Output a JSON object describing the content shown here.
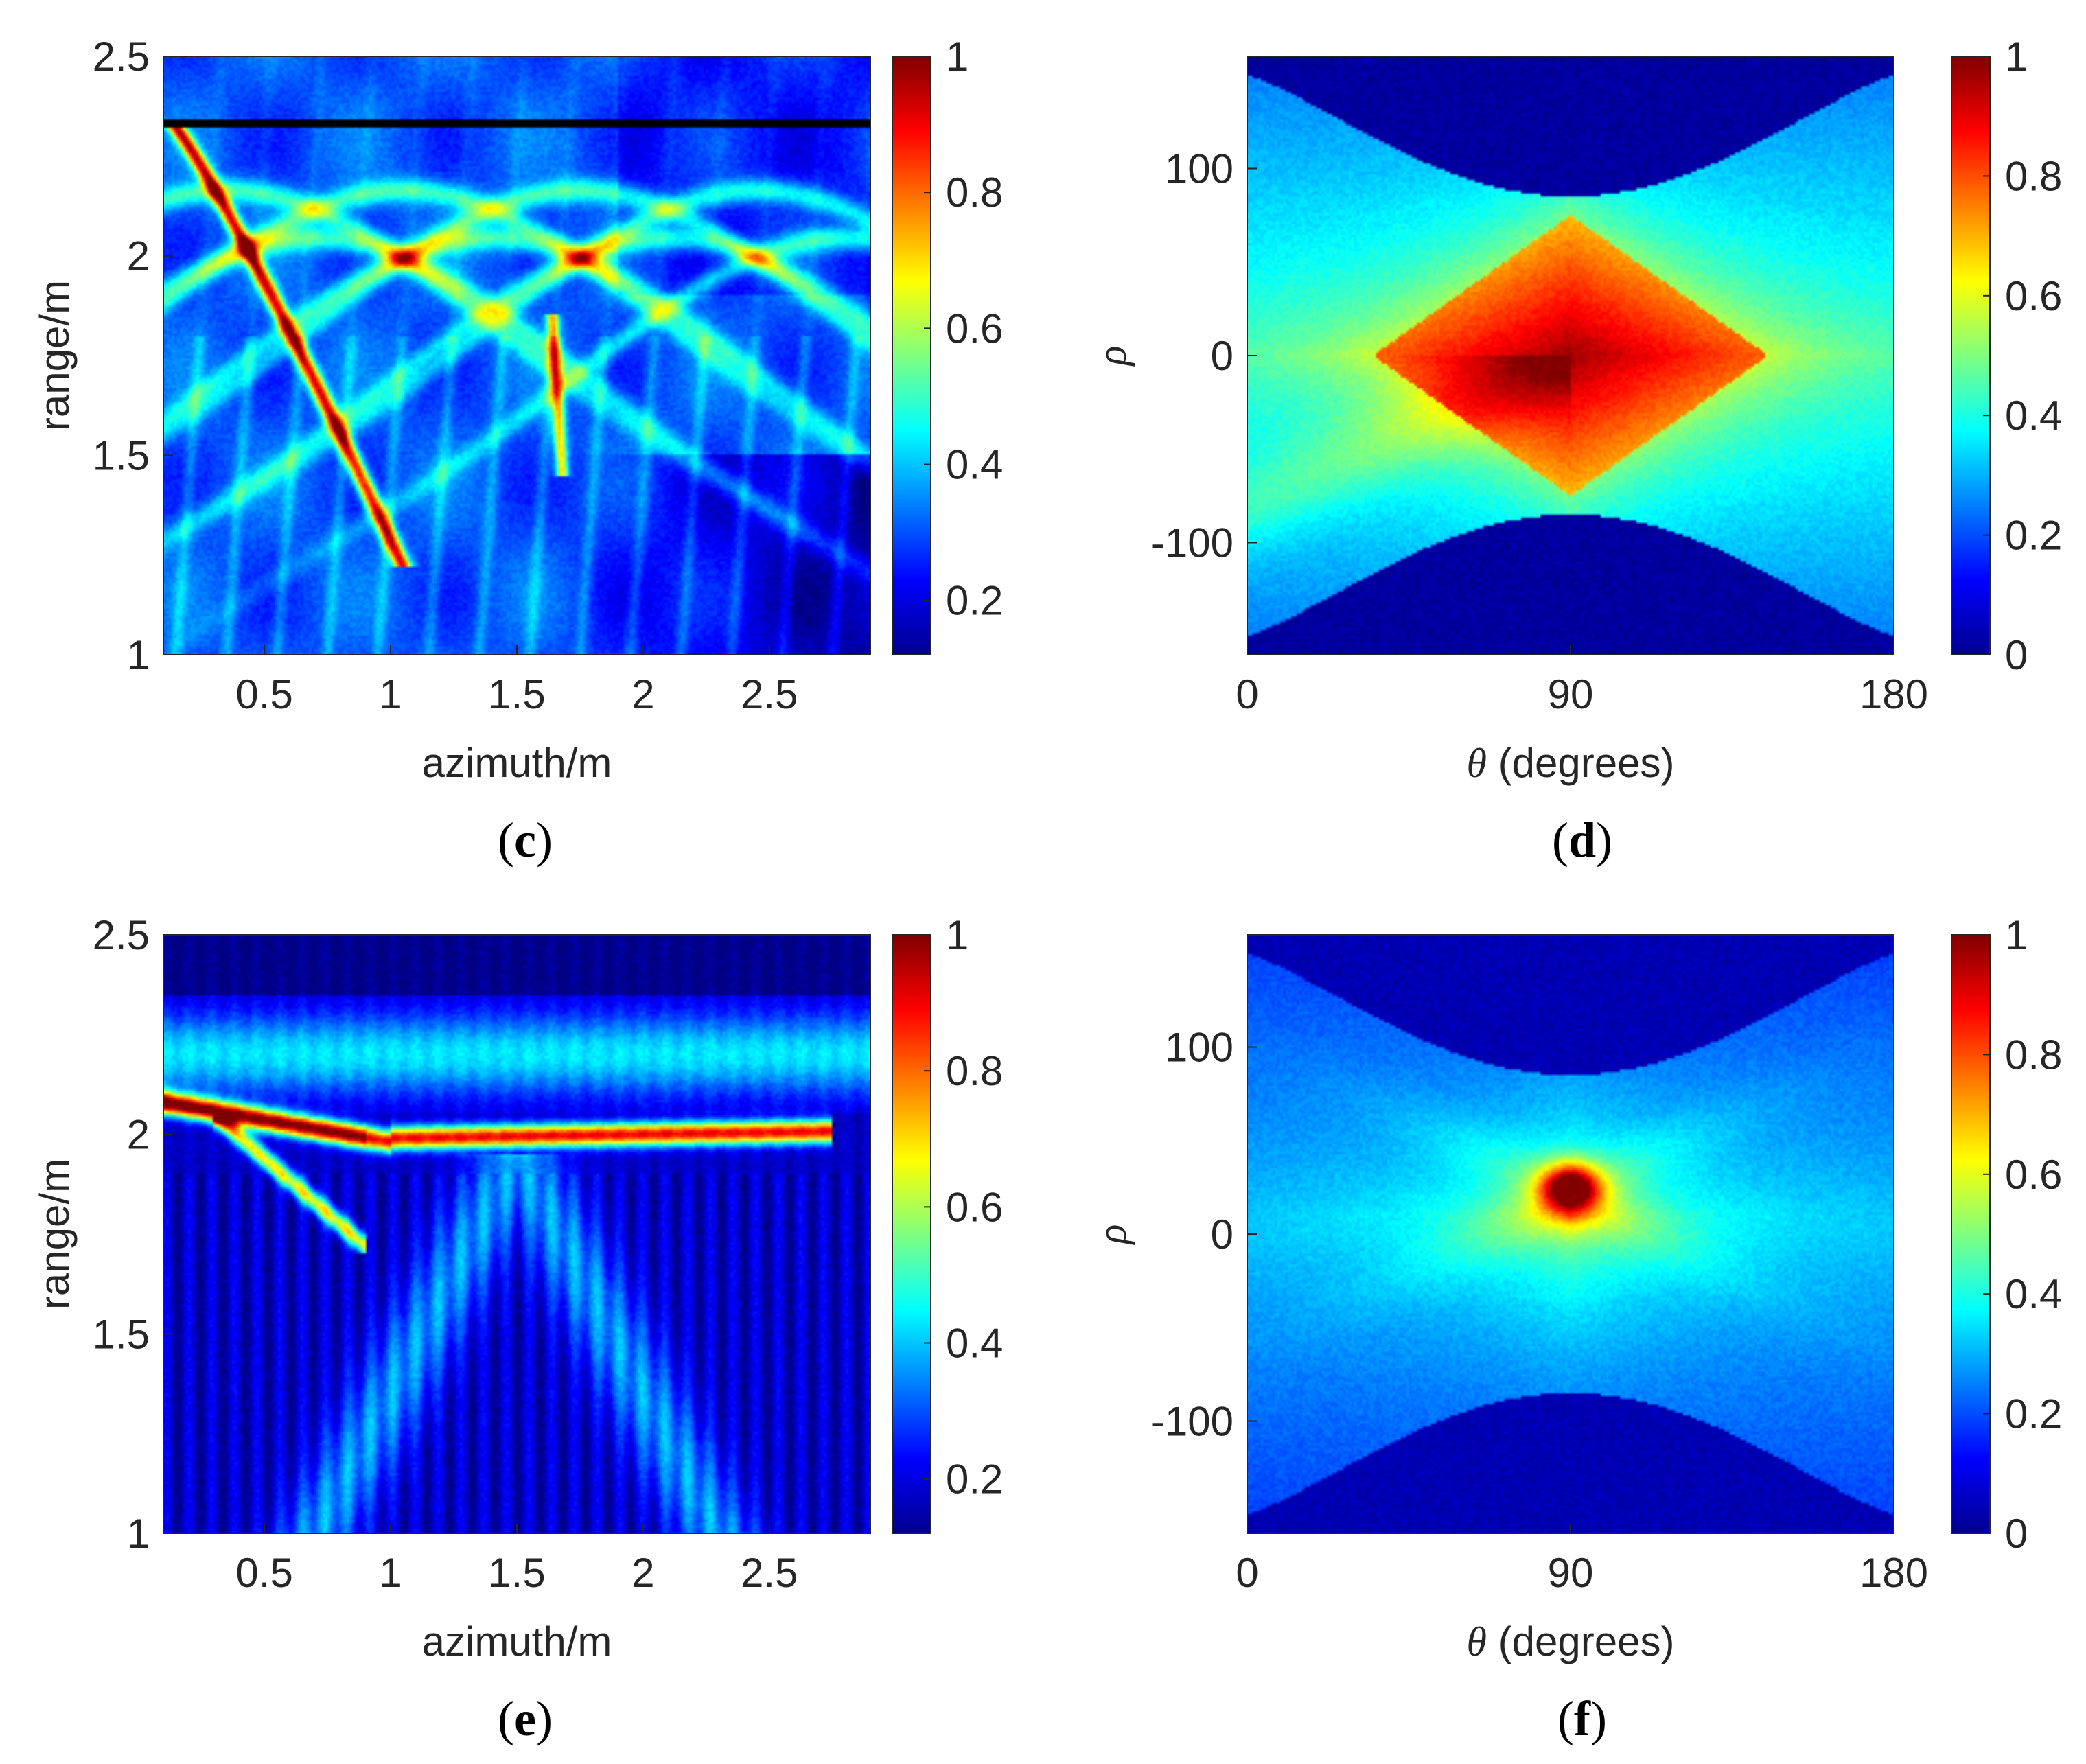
{
  "colormap": "jet",
  "chart_data": [
    {
      "id": "c",
      "type": "heatmap",
      "panel_label": "c",
      "xlabel": "azimuth/m",
      "ylabel": "range/m",
      "xlim": [
        0.1,
        2.9
      ],
      "ylim": [
        1,
        2.5
      ],
      "xticks": [
        0.5,
        1,
        1.5,
        2,
        2.5
      ],
      "xtick_labels": [
        "0.5",
        "1",
        "1.5",
        "2",
        "2.5"
      ],
      "yticks": [
        1,
        1.5,
        2,
        2.5
      ],
      "ytick_labels": [
        "1",
        "1.5",
        "2",
        "2.5"
      ],
      "colorbar": {
        "min": 0.12,
        "max": 1,
        "ticks": [
          0.2,
          0.4,
          0.6,
          0.8,
          1
        ],
        "tick_labels": [
          "0.2",
          "0.4",
          "0.6",
          "0.8",
          "1"
        ]
      },
      "pattern": "scatter-arcs"
    },
    {
      "id": "d",
      "type": "heatmap",
      "panel_label": "d",
      "xlabel_symbol": "θ",
      "xlabel_text": " (degrees)",
      "ylabel": "ρ",
      "xlim": [
        0,
        180
      ],
      "ylim": [
        -160,
        160
      ],
      "xticks": [
        0,
        90,
        180
      ],
      "xtick_labels": [
        "0",
        "90",
        "180"
      ],
      "yticks": [
        100,
        0,
        -100
      ],
      "ytick_labels": [
        "100",
        "0",
        "-100"
      ],
      "colorbar": {
        "min": 0,
        "max": 1,
        "ticks": [
          0,
          0.2,
          0.4,
          0.6,
          0.8,
          1
        ],
        "tick_labels": [
          "0",
          "0.2",
          "0.4",
          "0.6",
          "0.8",
          "1"
        ]
      },
      "pattern": "hough-strong"
    },
    {
      "id": "e",
      "type": "heatmap",
      "panel_label": "e",
      "xlabel": "azimuth/m",
      "ylabel": "range/m",
      "xlim": [
        0.1,
        2.9
      ],
      "ylim": [
        1,
        2.5
      ],
      "xticks": [
        0.5,
        1,
        1.5,
        2,
        2.5
      ],
      "xtick_labels": [
        "0.5",
        "1",
        "1.5",
        "2",
        "2.5"
      ],
      "yticks": [
        1,
        1.5,
        2,
        2.5
      ],
      "ytick_labels": [
        "1",
        "1.5",
        "2",
        "2.5"
      ],
      "colorbar": {
        "min": 0.12,
        "max": 1,
        "ticks": [
          0.2,
          0.4,
          0.6,
          0.8,
          1
        ],
        "tick_labels": [
          "0.2",
          "0.4",
          "0.6",
          "0.8",
          "1"
        ]
      },
      "pattern": "line-target"
    },
    {
      "id": "f",
      "type": "heatmap",
      "panel_label": "f",
      "xlabel_symbol": "θ",
      "xlabel_text": " (degrees)",
      "ylabel": "ρ",
      "xlim": [
        0,
        180
      ],
      "ylim": [
        -160,
        160
      ],
      "xticks": [
        0,
        90,
        180
      ],
      "xtick_labels": [
        "0",
        "90",
        "180"
      ],
      "yticks": [
        100,
        0,
        -100
      ],
      "ytick_labels": [
        "100",
        "0",
        "-100"
      ],
      "colorbar": {
        "min": 0,
        "max": 1,
        "ticks": [
          0,
          0.2,
          0.4,
          0.6,
          0.8,
          1
        ],
        "tick_labels": [
          "0",
          "0.2",
          "0.4",
          "0.6",
          "0.8",
          "1"
        ]
      },
      "pattern": "hough-peak"
    }
  ]
}
